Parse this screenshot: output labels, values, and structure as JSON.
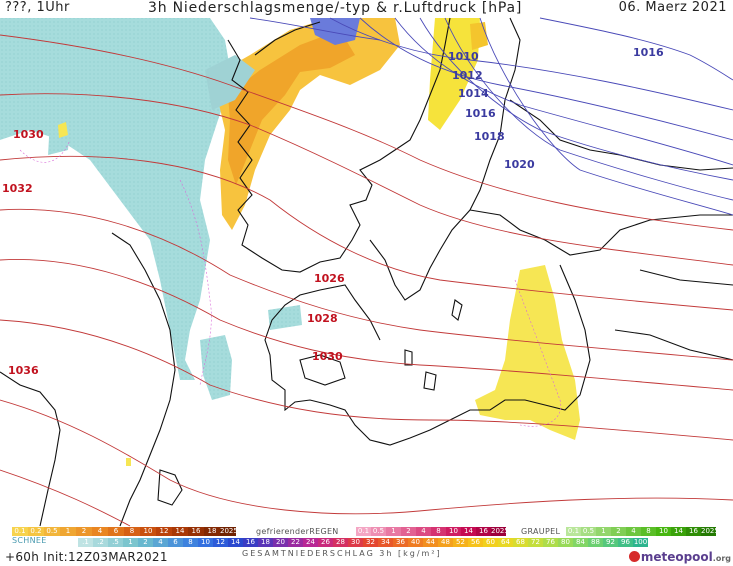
{
  "header": {
    "location_time": "???, 1Uhr",
    "title": "3h Niederschlagsmenge/-typ & r.Luftdruck [hPa]",
    "date": "06. Maerz 2021"
  },
  "isobars": {
    "red": [
      "1030",
      "1032",
      "1026",
      "1028",
      "1030",
      "1036"
    ],
    "blue": [
      "1010",
      "1012",
      "1014",
      "1016",
      "1018",
      "1020",
      "1016"
    ]
  },
  "legend": {
    "rain_scale": [
      "0.1",
      "0.2",
      "0.5",
      "1",
      "2",
      "4",
      "6",
      "8",
      "10",
      "12",
      "14",
      "16",
      "18",
      "2025+"
    ],
    "freezing_rain_label": "gefrierenderREGEN",
    "freezing_rain_scale": [
      "0.1",
      "0.5",
      "1",
      "2",
      "4",
      "8",
      "10",
      "14",
      "16",
      "2025+"
    ],
    "graupel_label": "GRAUPEL",
    "graupel_scale": [
      "0.1",
      "0.5",
      "1",
      "2",
      "4",
      "8",
      "10",
      "14",
      "16",
      "2025+"
    ],
    "snow_label": "SCHNEE",
    "total_scale": [
      ".1",
      ".2",
      ".5",
      "1",
      "2",
      "4",
      "6",
      "8",
      "10",
      "12",
      "14",
      "16",
      "18",
      "20",
      "22",
      "24",
      "26",
      "28",
      "30",
      "32",
      "34",
      "36",
      "40",
      "44",
      "48",
      "52",
      "56",
      "60",
      "64",
      "68",
      "72",
      "76",
      "80",
      "84",
      "88",
      "92",
      "96",
      "100"
    ],
    "total_label": "GESAMTNIEDERSCHLAG 3h [kg/m²]",
    "colors": {
      "rain": [
        "#f7d34d",
        "#f5c542",
        "#f2b53a",
        "#efa632",
        "#ec962a",
        "#e98622",
        "#e0741b",
        "#d66115",
        "#c9510f",
        "#bb420a",
        "#a93806",
        "#963004",
        "#832903",
        "#702202"
      ],
      "freezing": [
        "#f4a6c4",
        "#ee8fb3",
        "#e878a3",
        "#e26192",
        "#dc4a82",
        "#d53371",
        "#cf1c61",
        "#c50b52",
        "#b10446",
        "#9d003b"
      ],
      "graupel": [
        "#b9e69a",
        "#a6de83",
        "#93d66c",
        "#80ce55",
        "#6dc63e",
        "#5abe27",
        "#47b610",
        "#3aa20a",
        "#2f8e06",
        "#247a03"
      ],
      "total": [
        "#bfe3e3",
        "#a8d9dc",
        "#92cfd5",
        "#7cc5ce",
        "#69b8cf",
        "#5aa6d4",
        "#4c94d9",
        "#3e82de",
        "#3470e0",
        "#2d5cd9",
        "#2a48cf",
        "#3a3cc4",
        "#5a35b8",
        "#7a2fac",
        "#9a2aa0",
        "#b82694",
        "#c9297c",
        "#d42f62",
        "#dd3a48",
        "#e4462f",
        "#e8582a",
        "#ec6a26",
        "#ef7c22",
        "#f28e1f",
        "#f4a01c",
        "#f6b21a",
        "#f6c21a",
        "#f2d01d",
        "#e8d824",
        "#d8dc2f",
        "#c4de3c",
        "#aedd4a",
        "#98da58",
        "#82d665",
        "#6bd071",
        "#55c87c",
        "#40bf86",
        "#2db48e"
      ]
    }
  },
  "footer": {
    "run_info": "+60h Init:12Z03MAR2021",
    "brand": "meteopool",
    "brand_tld": ".org"
  }
}
